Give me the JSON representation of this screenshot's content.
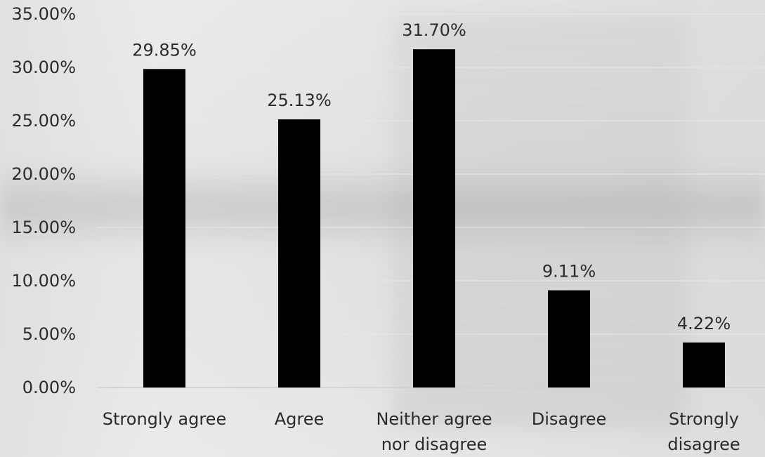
{
  "chart_data": {
    "type": "bar",
    "title": "",
    "xlabel": "",
    "ylabel": "",
    "categories": [
      [
        "Strongly agree"
      ],
      [
        "Agree"
      ],
      [
        "Neither agree",
        "nor disagree"
      ],
      [
        "Disagree"
      ],
      [
        "Strongly",
        "disagree"
      ]
    ],
    "values": [
      29.85,
      25.13,
      31.7,
      9.11,
      4.22
    ],
    "data_labels": [
      "29.85%",
      "25.13%",
      "31.70%",
      "9.11%",
      "4.22%"
    ],
    "ylim": [
      0,
      35
    ],
    "yticks": [
      0,
      5,
      10,
      15,
      20,
      25,
      30,
      35
    ],
    "ytick_labels": [
      "0.00%",
      "5.00%",
      "10.00%",
      "15.00%",
      "20.00%",
      "25.00%",
      "30.00%",
      "35.00%"
    ],
    "bar_color": "#000000",
    "grid": true,
    "legend": "none"
  }
}
